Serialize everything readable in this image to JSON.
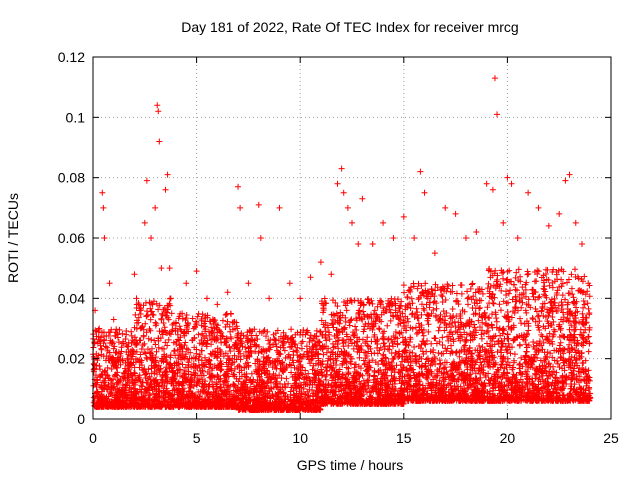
{
  "chart_data": {
    "type": "scatter",
    "title": "Day 181 of 2022, Rate Of TEC Index for receiver mrcg",
    "xlabel": "GPS time / hours",
    "ylabel": "ROTI / TECUs",
    "xlim": [
      0,
      25
    ],
    "ylim": [
      0,
      0.12
    ],
    "xticks": [
      "0",
      "5",
      "10",
      "15",
      "20",
      "25"
    ],
    "yticks": [
      "0",
      "0.02",
      "0.04",
      "0.06",
      "0.08",
      "0.1",
      "0.12"
    ],
    "grid": true,
    "marker": "plus",
    "color": "#ff0000",
    "series": [
      {
        "x": [
          0.1,
          0.3,
          0.45,
          0.5,
          0.55,
          0.8,
          1.0,
          1.2,
          2.0,
          2.1,
          2.5,
          2.6,
          2.8,
          3.0,
          3.1,
          3.15,
          3.2,
          3.3,
          3.5,
          3.6,
          3.7,
          3.8,
          4.0,
          4.3,
          4.5,
          5.0,
          5.5,
          6.0,
          6.5,
          7.0,
          7.1,
          7.5,
          8.0,
          8.1,
          8.5,
          9.0,
          9.5,
          10.0,
          10.5,
          11.0,
          11.5,
          11.8,
          12.0,
          12.1,
          12.3,
          12.5,
          12.8,
          13.0,
          13.5,
          14.0,
          14.5,
          15.0,
          15.5,
          15.8,
          16.0,
          16.5,
          17.0,
          17.5,
          18.0,
          18.5,
          19.0,
          19.3,
          19.4,
          19.5,
          19.8,
          20.0,
          20.2,
          20.5,
          21.0,
          21.5,
          22.0,
          22.5,
          22.8,
          23.0,
          23.3,
          23.6,
          23.9
        ],
        "y": [
          0.036,
          0.03,
          0.075,
          0.07,
          0.06,
          0.045,
          0.033,
          0.028,
          0.048,
          0.04,
          0.065,
          0.079,
          0.06,
          0.07,
          0.104,
          0.102,
          0.092,
          0.05,
          0.076,
          0.081,
          0.05,
          0.035,
          0.032,
          0.035,
          0.045,
          0.049,
          0.04,
          0.038,
          0.042,
          0.077,
          0.07,
          0.045,
          0.071,
          0.06,
          0.04,
          0.07,
          0.045,
          0.04,
          0.047,
          0.052,
          0.048,
          0.078,
          0.083,
          0.075,
          0.07,
          0.065,
          0.058,
          0.073,
          0.058,
          0.065,
          0.06,
          0.067,
          0.06,
          0.082,
          0.075,
          0.055,
          0.07,
          0.068,
          0.06,
          0.062,
          0.078,
          0.076,
          0.113,
          0.101,
          0.065,
          0.08,
          0.078,
          0.06,
          0.075,
          0.07,
          0.064,
          0.068,
          0.079,
          0.081,
          0.065,
          0.058,
          0.045
        ]
      }
    ],
    "density": {
      "bands": [
        {
          "x": [
            0,
            2
          ],
          "y": [
            0.004,
            0.03
          ]
        },
        {
          "x": [
            2,
            4
          ],
          "y": [
            0.004,
            0.04
          ]
        },
        {
          "x": [
            4,
            7
          ],
          "y": [
            0.004,
            0.035
          ]
        },
        {
          "x": [
            7,
            11
          ],
          "y": [
            0.003,
            0.03
          ]
        },
        {
          "x": [
            11,
            15
          ],
          "y": [
            0.005,
            0.04
          ]
        },
        {
          "x": [
            15,
            19
          ],
          "y": [
            0.006,
            0.045
          ]
        },
        {
          "x": [
            19,
            24
          ],
          "y": [
            0.006,
            0.05
          ]
        }
      ]
    }
  }
}
